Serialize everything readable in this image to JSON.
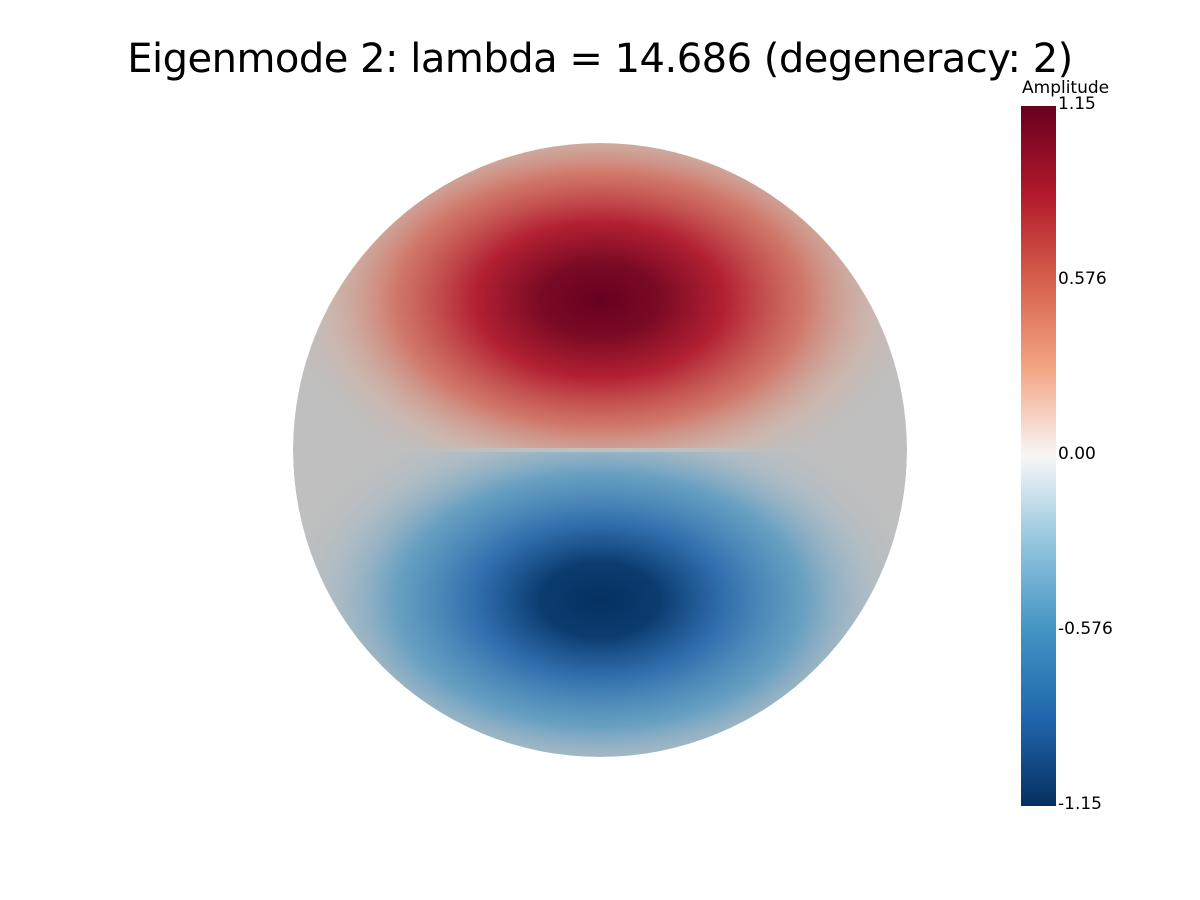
{
  "title": "Eigenmode 2: lambda = 14.686 (degeneracy: 2)",
  "colorbar": {
    "title": "Amplitude",
    "ticks": [
      "1.15",
      "0.576",
      "0.00",
      "-0.576",
      "-1.15"
    ],
    "range": [
      -1.15,
      1.15
    ],
    "colormap": "RdBu_r",
    "colors": {
      "max": "#67001f",
      "high": "#d6604d",
      "mid": "#f7f7f7",
      "low": "#4393c3",
      "min": "#053061",
      "background_disk": "#bfbfbf"
    }
  }
}
